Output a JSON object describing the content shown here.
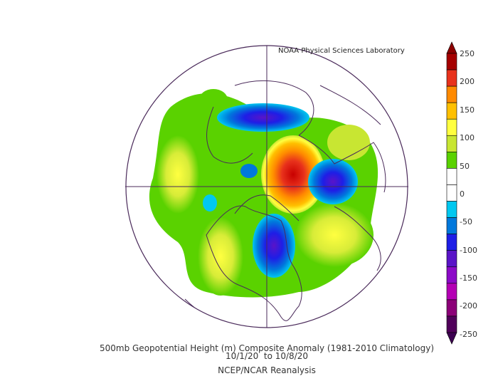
{
  "credit": "NOAA Physical Sciences Laboratory",
  "caption": {
    "line1": "500mb Geopotential Height (m) Composite Anomaly (1981-2010 Climatology)",
    "line2": "10/1/20  to 10/8/20",
    "line3": "NCEP/NCAR Reanalysis"
  },
  "colorbar": {
    "labels": [
      "250",
      "200",
      "150",
      "100",
      "50",
      "0",
      "-50",
      "-100",
      "-150",
      "-200",
      "-250"
    ],
    "colors": [
      "#a50000",
      "#e8321c",
      "#ff8a00",
      "#ffc000",
      "#ffff40",
      "#c8e632",
      "#5ad200",
      "#ffffff",
      "#ffffff",
      "#00c8f0",
      "#0078dc",
      "#1e1ee6",
      "#5a14c8",
      "#8c0ac8",
      "#b400b4",
      "#8c0078",
      "#50005a"
    ]
  },
  "map": {
    "ocean_color": "#ffffff",
    "boundary_color": "#4a2a5a"
  }
}
